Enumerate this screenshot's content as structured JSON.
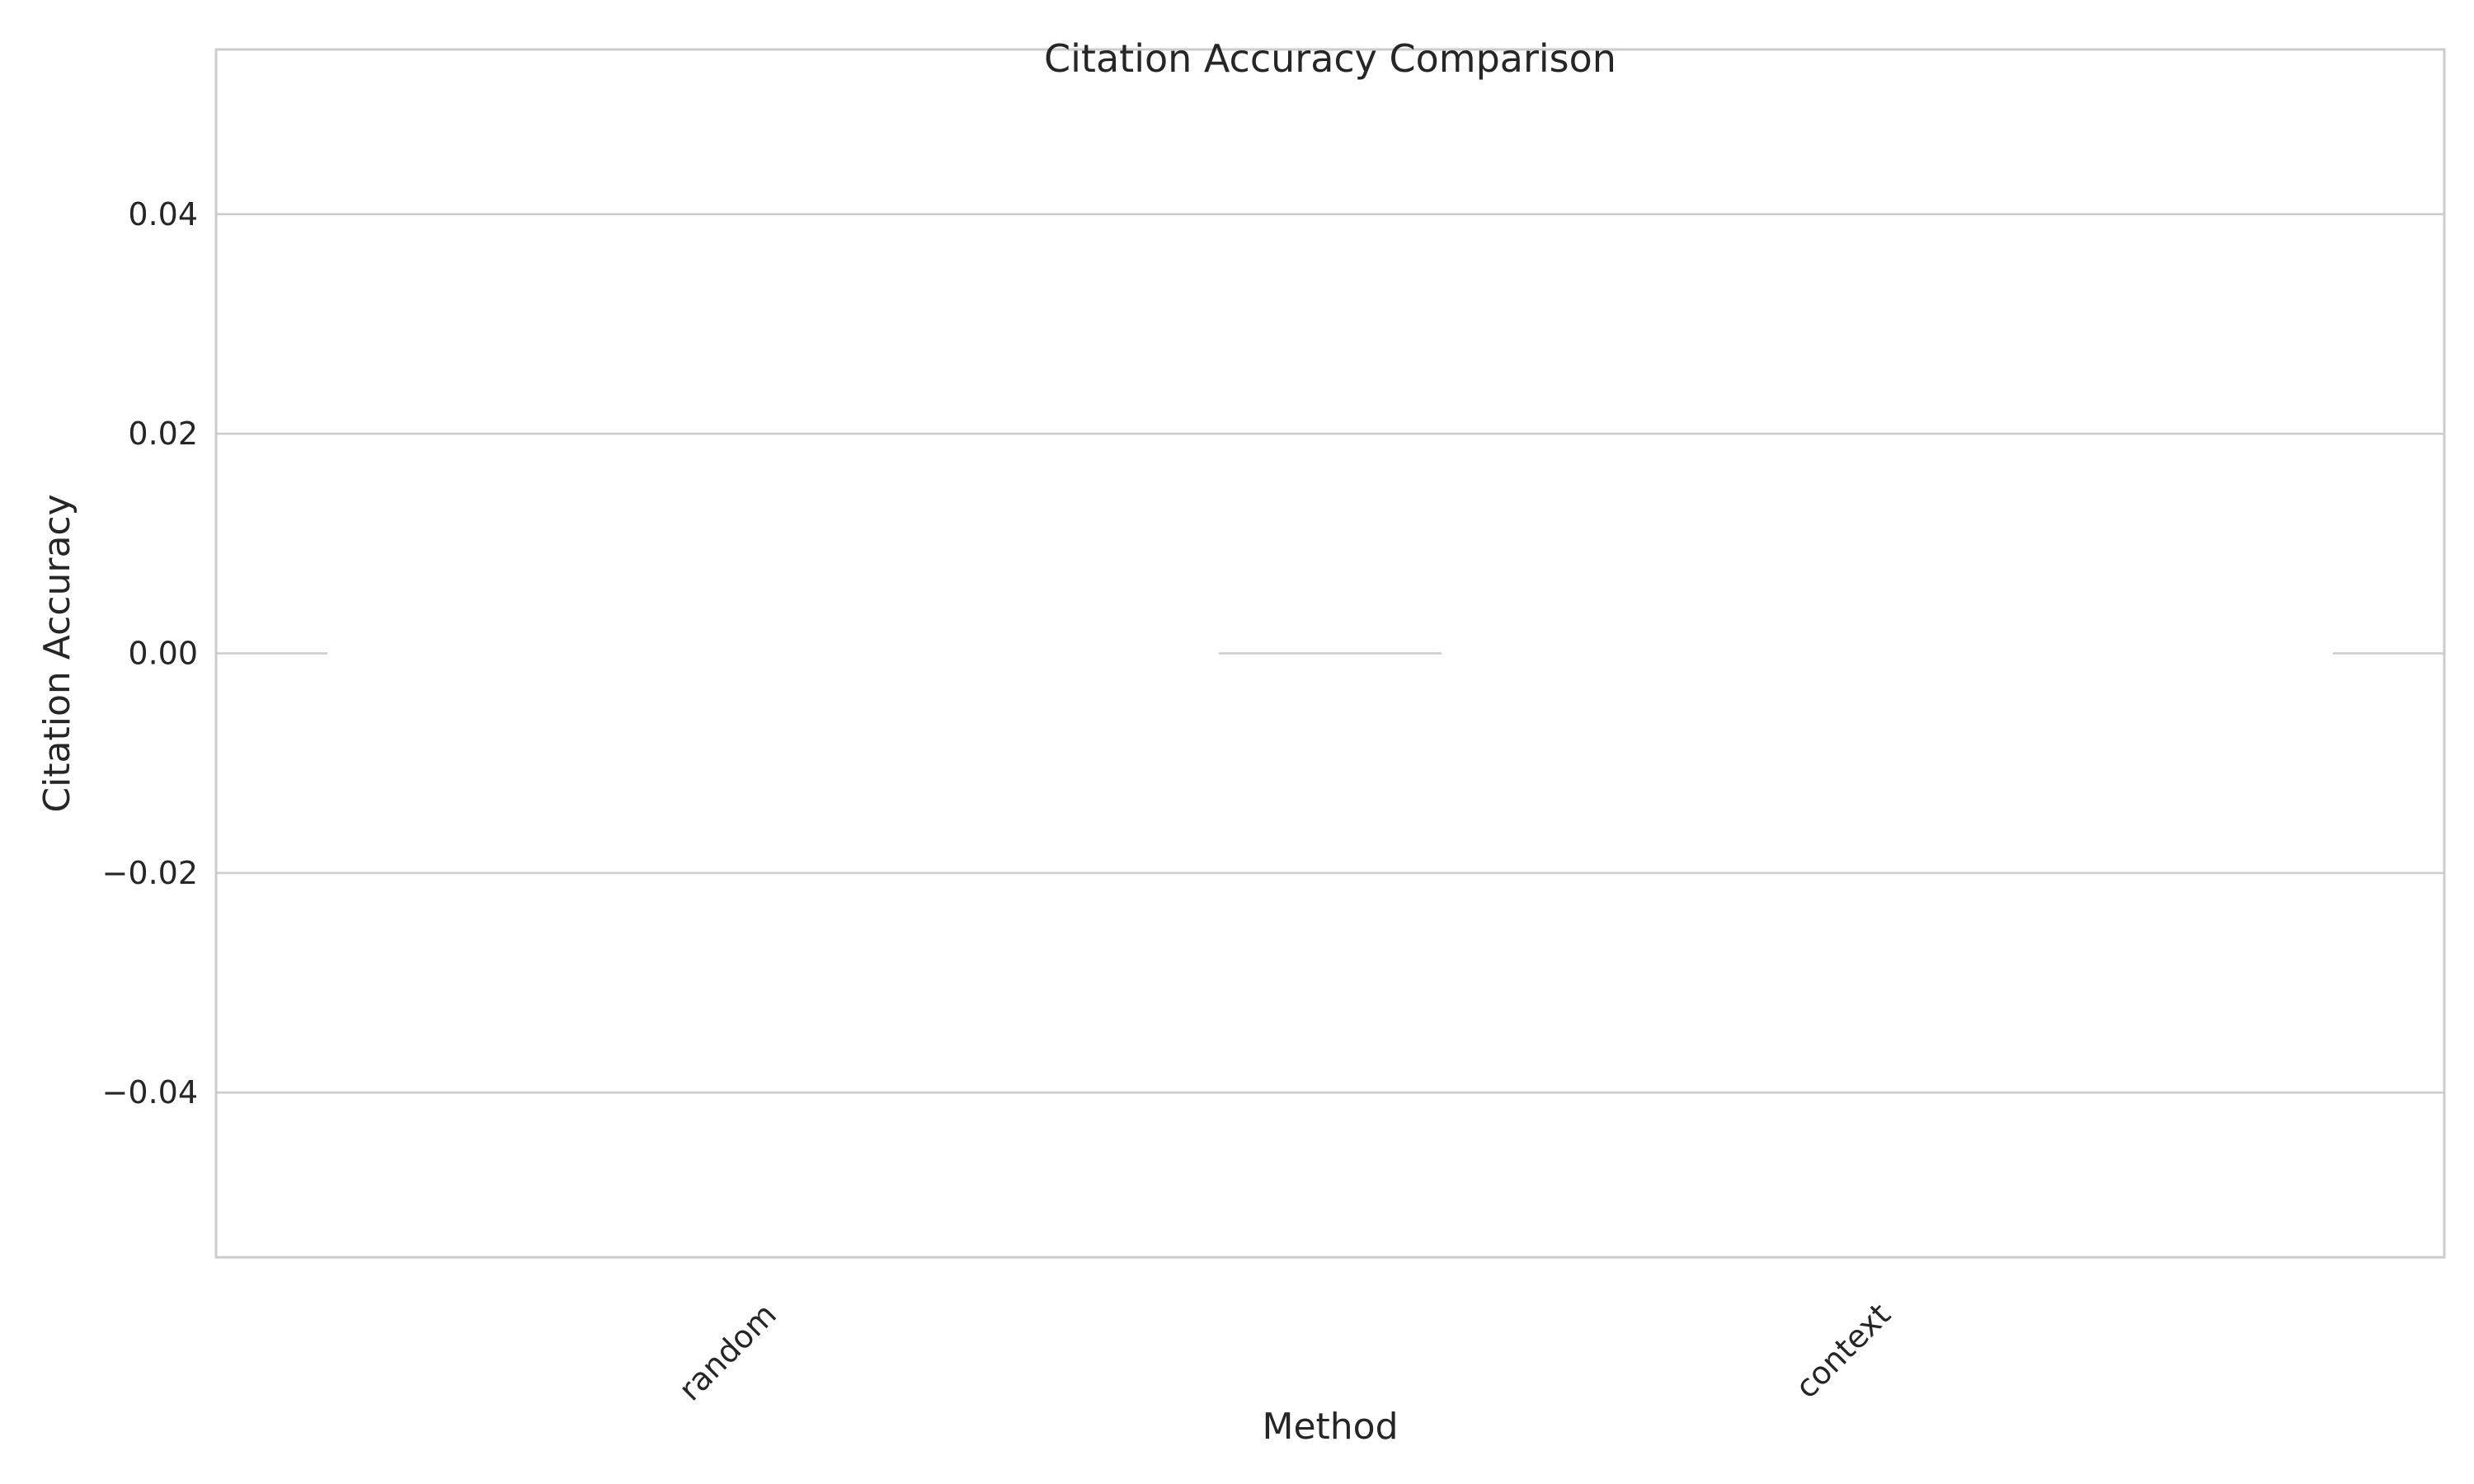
{
  "chart_data": {
    "type": "bar",
    "title": "Citation Accuracy Comparison",
    "xlabel": "Method",
    "ylabel": "Citation Accuracy",
    "categories": [
      "random",
      "context"
    ],
    "values": [
      0.0,
      0.0
    ],
    "ylim": [
      -0.055,
      0.055
    ],
    "yticks": [
      -0.04,
      -0.02,
      0.0,
      0.02,
      0.04
    ],
    "ytick_labels": [
      "−0.04",
      "−0.02",
      "0.00",
      "0.02",
      "0.04"
    ],
    "grid": true,
    "bar_color": "#ffffff",
    "grid_color": "#cccccc",
    "x_tick_rotation_deg": 45
  }
}
